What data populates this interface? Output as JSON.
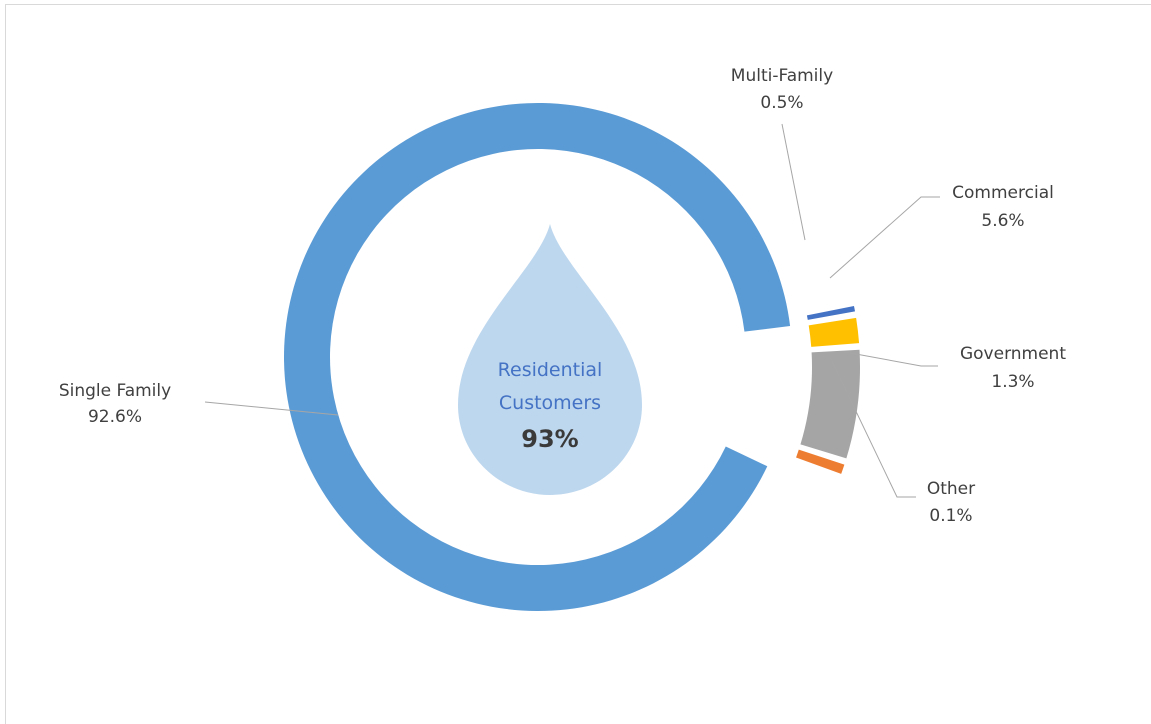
{
  "chart_data": {
    "type": "pie",
    "subtype": "donut",
    "slices": [
      {
        "label": "Single Family",
        "value": 92.6,
        "display": "92.6%",
        "color": "#5b9bd5"
      },
      {
        "label": "Multi-Family",
        "value": 0.5,
        "display": "0.5%",
        "color": "#ed7d31"
      },
      {
        "label": "Commercial",
        "value": 5.6,
        "display": "5.6%",
        "color": "#a5a5a5"
      },
      {
        "label": "Government",
        "value": 1.3,
        "display": "1.3%",
        "color": "#ffc000"
      },
      {
        "label": "Other",
        "value": 0.1,
        "display": "0.1%",
        "color": "#4472c4"
      }
    ],
    "center": {
      "line1": "Residential",
      "line2": "Customers",
      "value": "93%",
      "drop_color": "#bdd7ee"
    },
    "leader_color": "#a6a6a6"
  }
}
